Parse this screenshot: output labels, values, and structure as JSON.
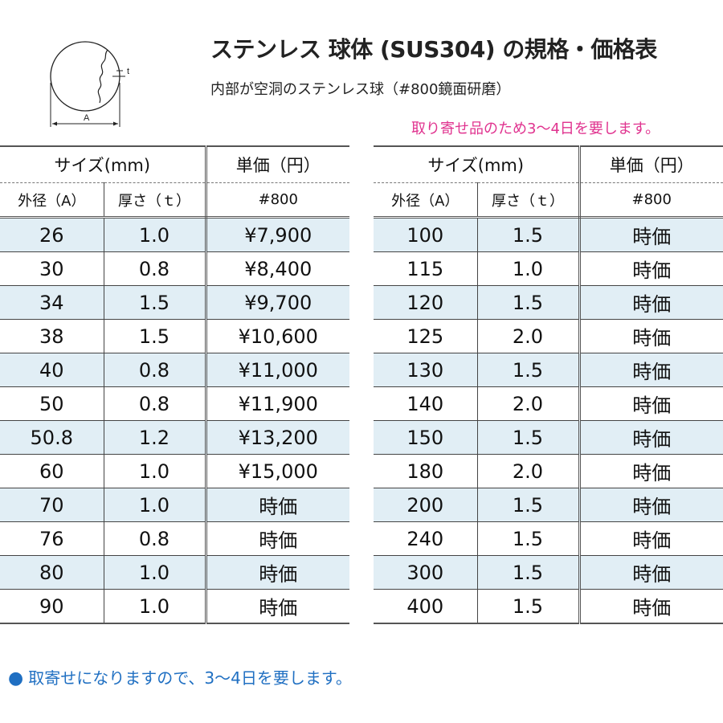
{
  "diagram": {
    "dim_a": "A",
    "dim_t": "t"
  },
  "header": {
    "title": "ステンレス 球体 (SUS304) の規格・価格表",
    "subtitle": "内部が空洞のステンレス球（#800鏡面研磨）",
    "note": "取り寄せ品のため3～4日を要します。"
  },
  "table_headers": {
    "size": "サイズ(mm)",
    "unit_price": "単価（円）",
    "outer_diameter": "外径（A）",
    "thickness": "厚さ（ｔ）",
    "finish": "#800"
  },
  "left_table": [
    {
      "a": "26",
      "t": "1.0",
      "price": "¥7,900"
    },
    {
      "a": "30",
      "t": "0.8",
      "price": "¥8,400"
    },
    {
      "a": "34",
      "t": "1.5",
      "price": "¥9,700"
    },
    {
      "a": "38",
      "t": "1.5",
      "price": "¥10,600"
    },
    {
      "a": "40",
      "t": "0.8",
      "price": "¥11,000"
    },
    {
      "a": "50",
      "t": "0.8",
      "price": "¥11,900"
    },
    {
      "a": "50.8",
      "t": "1.2",
      "price": "¥13,200"
    },
    {
      "a": "60",
      "t": "1.0",
      "price": "¥15,000"
    },
    {
      "a": "70",
      "t": "1.0",
      "price": "時価"
    },
    {
      "a": "76",
      "t": "0.8",
      "price": "時価"
    },
    {
      "a": "80",
      "t": "1.0",
      "price": "時価"
    },
    {
      "a": "90",
      "t": "1.0",
      "price": "時価"
    }
  ],
  "right_table": [
    {
      "a": "100",
      "t": "1.5",
      "price": "時価"
    },
    {
      "a": "115",
      "t": "1.0",
      "price": "時価"
    },
    {
      "a": "120",
      "t": "1.5",
      "price": "時価"
    },
    {
      "a": "125",
      "t": "2.0",
      "price": "時価"
    },
    {
      "a": "130",
      "t": "1.5",
      "price": "時価"
    },
    {
      "a": "140",
      "t": "2.0",
      "price": "時価"
    },
    {
      "a": "150",
      "t": "1.5",
      "price": "時価"
    },
    {
      "a": "180",
      "t": "2.0",
      "price": "時価"
    },
    {
      "a": "200",
      "t": "1.5",
      "price": "時価"
    },
    {
      "a": "240",
      "t": "1.5",
      "price": "時価"
    },
    {
      "a": "300",
      "t": "1.5",
      "price": "時価"
    },
    {
      "a": "400",
      "t": "1.5",
      "price": "時価"
    }
  ],
  "footer": {
    "bullet": "●",
    "text": "取寄せになりますので、3～4日を要します。"
  },
  "colors": {
    "shaded_row": "#e1eef5",
    "note_pink": "#e0338f",
    "footer_blue": "#1f6fc2"
  }
}
